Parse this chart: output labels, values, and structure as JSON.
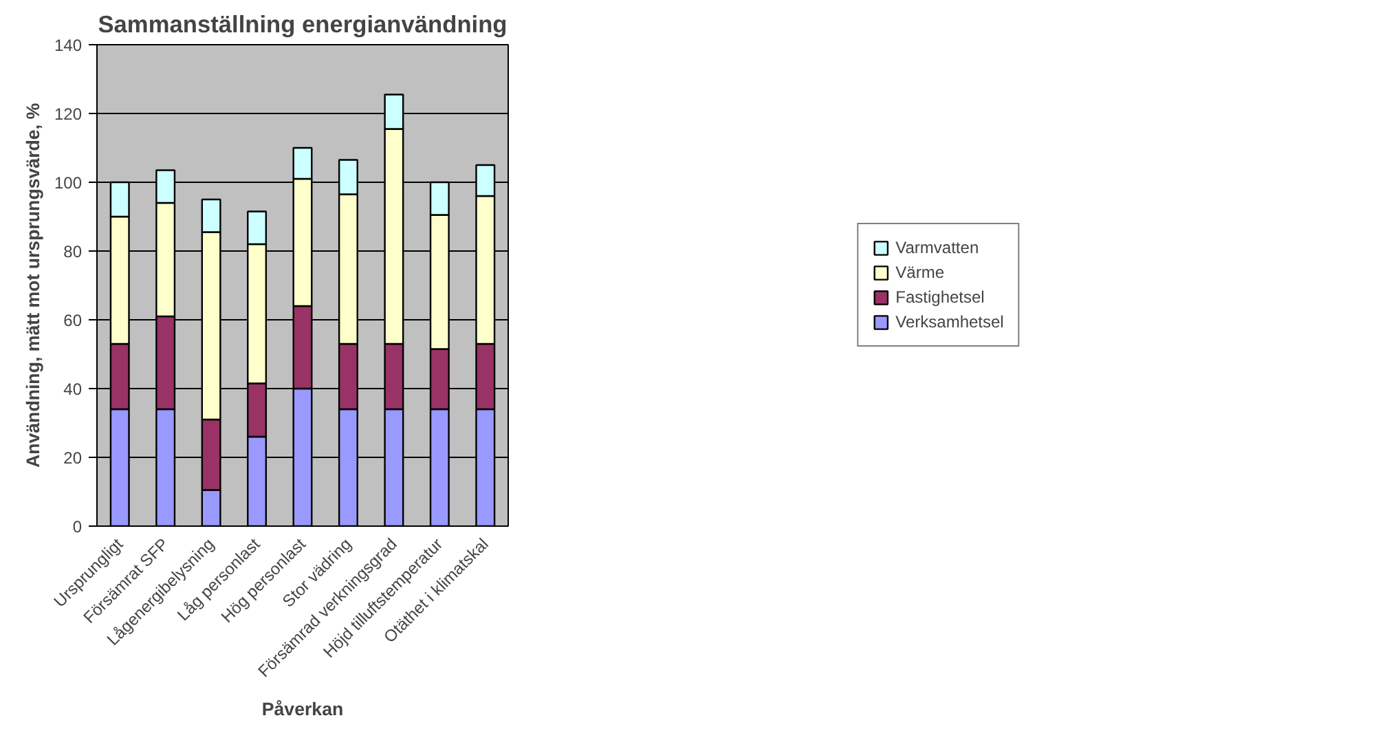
{
  "chart_data": {
    "type": "bar",
    "title": "Sammanställning energianvändning",
    "xlabel": "Påverkan",
    "ylabel": "Användning, mätt mot ursprungsvärde, %",
    "categories": [
      "Ursprungligt",
      "Försämrat SFP",
      "Lågenergibelysning",
      "Låg personlast",
      "Hög personlast",
      "Stor vädring",
      "Försämrad verkningsgrad",
      "Höjd tilluftstemperatur",
      "Otäthet i klimatskal"
    ],
    "stacked": true,
    "series": [
      {
        "name": "Verksamhetsel",
        "color": "#9999ff",
        "values": [
          34,
          34,
          10.5,
          26,
          40,
          34,
          34,
          34,
          34
        ]
      },
      {
        "name": "Fastighetsel",
        "color": "#993366",
        "values": [
          19,
          27,
          20.5,
          15.5,
          24,
          19,
          19,
          17.5,
          19
        ]
      },
      {
        "name": "Värme",
        "color": "#ffffcc",
        "values": [
          37,
          33,
          54.5,
          40.5,
          37,
          43.5,
          62.5,
          39,
          43
        ]
      },
      {
        "name": "Varmvatten",
        "color": "#ccffff",
        "values": [
          10,
          9.5,
          9.5,
          9.5,
          9,
          10,
          10,
          9.5,
          9
        ]
      }
    ],
    "ylim": [
      0,
      140
    ],
    "yticks": [
      0,
      20,
      40,
      60,
      80,
      100,
      120,
      140
    ],
    "grid": "y",
    "legend": "right"
  }
}
